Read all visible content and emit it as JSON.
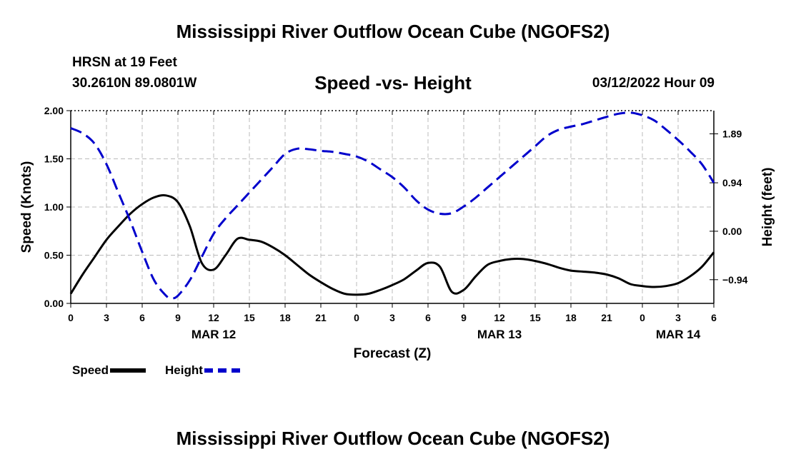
{
  "title": "Mississippi River Outflow Ocean Cube (NGOFS2)",
  "subtitle": "Speed -vs- Height",
  "station": {
    "name": "HRSN at 19 Feet",
    "coords": "30.2610N  89.0801W"
  },
  "datetime": "03/12/2022 Hour 09",
  "legend": {
    "speed_label": "Speed",
    "height_label": "Height"
  },
  "colors": {
    "speed": "#000000",
    "height": "#0000cc",
    "grid": "#bbbbbb"
  },
  "chart_data": {
    "type": "line",
    "title": "Speed -vs- Height",
    "xlabel": "Forecast (Z)",
    "ylabel": "Speed (Knots)",
    "y2label": "Height (feet)",
    "xlim": [
      0,
      54
    ],
    "ylim": [
      0,
      2.0
    ],
    "y2lim": [
      -1.4,
      2.34
    ],
    "xticks": [
      0,
      3,
      6,
      9,
      12,
      15,
      18,
      21,
      24,
      27,
      30,
      33,
      36,
      39,
      42,
      45,
      48,
      51,
      54
    ],
    "xtick_labels": [
      "0",
      "3",
      "6",
      "9",
      "12",
      "15",
      "18",
      "21",
      "0",
      "3",
      "6",
      "9",
      "12",
      "15",
      "18",
      "21",
      "0",
      "3",
      "6"
    ],
    "date_labels": [
      {
        "x": 12,
        "label": "MAR 12"
      },
      {
        "x": 36,
        "label": "MAR 13"
      },
      {
        "x": 51,
        "label": "MAR 14"
      }
    ],
    "yticks": [
      0,
      0.5,
      1.0,
      1.5,
      2.0
    ],
    "ytick_labels": [
      "0.00",
      "0.50",
      "1.00",
      "1.50",
      "2.00"
    ],
    "y2ticks": [
      -0.94,
      0,
      0.94,
      1.89
    ],
    "y2tick_labels": [
      "−0.94",
      "0.00",
      "0.94",
      "1.89"
    ],
    "grid": true,
    "series": [
      {
        "name": "Speed",
        "axis": "left",
        "style": "solid",
        "x": [
          0,
          1,
          2,
          3,
          4,
          5,
          6,
          7,
          8,
          9,
          10,
          11,
          12,
          13,
          14,
          15,
          16,
          17,
          18,
          19,
          20,
          21,
          22,
          23,
          24,
          25,
          26,
          27,
          28,
          29,
          30,
          31,
          32,
          33,
          34,
          35,
          36,
          37,
          38,
          39,
          40,
          41,
          42,
          43,
          44,
          45,
          46,
          47,
          48,
          49,
          50,
          51,
          52,
          53,
          54
        ],
        "values": [
          0.1,
          0.3,
          0.48,
          0.66,
          0.8,
          0.93,
          1.03,
          1.1,
          1.12,
          1.05,
          0.8,
          0.42,
          0.35,
          0.5,
          0.67,
          0.66,
          0.64,
          0.58,
          0.5,
          0.4,
          0.3,
          0.22,
          0.15,
          0.1,
          0.09,
          0.1,
          0.14,
          0.19,
          0.25,
          0.34,
          0.42,
          0.38,
          0.12,
          0.14,
          0.28,
          0.4,
          0.44,
          0.46,
          0.46,
          0.44,
          0.41,
          0.37,
          0.34,
          0.33,
          0.32,
          0.3,
          0.26,
          0.2,
          0.18,
          0.17,
          0.18,
          0.21,
          0.28,
          0.38,
          0.53
        ]
      },
      {
        "name": "Height",
        "axis": "right",
        "style": "dashed",
        "x": [
          0,
          1,
          2,
          3,
          4,
          5,
          6,
          7,
          8,
          8.5,
          9,
          10,
          11,
          12,
          13,
          14,
          15,
          16,
          17,
          18,
          19,
          20,
          21,
          22,
          23,
          24,
          25,
          26,
          27,
          28,
          29,
          30,
          31,
          32,
          33,
          34,
          35,
          36,
          37,
          38,
          39,
          40,
          41,
          42,
          43,
          44,
          45,
          46,
          47,
          48,
          49,
          50,
          51,
          52,
          53,
          54
        ],
        "values": [
          2.0,
          1.9,
          1.7,
          1.3,
          0.75,
          0.2,
          -0.4,
          -0.95,
          -1.25,
          -1.3,
          -1.25,
          -0.95,
          -0.5,
          -0.05,
          0.25,
          0.5,
          0.75,
          1.0,
          1.25,
          1.5,
          1.6,
          1.59,
          1.56,
          1.54,
          1.5,
          1.45,
          1.35,
          1.2,
          1.05,
          0.85,
          0.6,
          0.42,
          0.34,
          0.35,
          0.48,
          0.65,
          0.85,
          1.05,
          1.25,
          1.45,
          1.65,
          1.85,
          1.97,
          2.03,
          2.08,
          2.15,
          2.22,
          2.28,
          2.3,
          2.25,
          2.15,
          1.97,
          1.77,
          1.55,
          1.3,
          0.94
        ]
      }
    ]
  }
}
